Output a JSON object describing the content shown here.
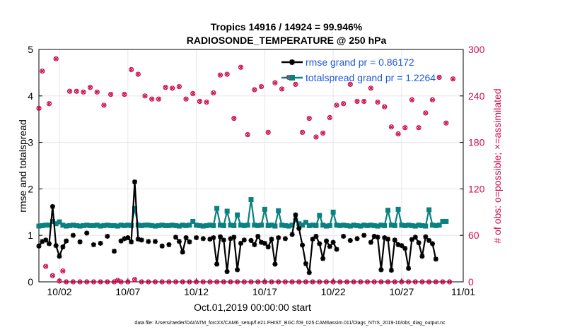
{
  "chart_data": {
    "type": "line",
    "title": "Tropics 14916 / 14924 = 99.946%",
    "subtitle": "RADIOSONDE_TEMPERATURE @ 250 hPa",
    "xlabel": "Oct.01,2019 00:00:00 start",
    "ylabel_left": "rmse and totalspread",
    "ylabel_right": "# of obs: o=possible; ×=assimilated",
    "footer": "data file: /Users/raeder/DAI/ATM_forcXX/CAM6_setup/f.e21.FHIST_BGC.f09_025.CAM6assim.011/Diags_NTrS_2019-10/obs_diag_output.nc",
    "xlim": [
      0.5,
      31.5
    ],
    "ylim_left": [
      0,
      5
    ],
    "ylim_right": [
      0,
      300
    ],
    "x_ticks": [
      {
        "value": 2,
        "label": "10/02"
      },
      {
        "value": 7,
        "label": "10/07"
      },
      {
        "value": 12,
        "label": "10/12"
      },
      {
        "value": 17,
        "label": "10/17"
      },
      {
        "value": 22,
        "label": "10/22"
      },
      {
        "value": 27,
        "label": "10/27"
      },
      {
        "value": 32,
        "label": "11/01"
      }
    ],
    "y_ticks_left": [
      "0",
      "1",
      "2",
      "3",
      "4",
      "5"
    ],
    "y_ticks_right": [
      "0",
      "60",
      "120",
      "180",
      "240",
      "300"
    ],
    "colors": {
      "rmse": "#000000",
      "spread": "#0a8080",
      "obs": "#cc0f4e",
      "legend_text": "#1f5ad6"
    },
    "series": [
      {
        "name": "rmse grand pr = 0.86172",
        "x0": 0.5,
        "dx": 0.25,
        "values": [
          0.77,
          0.87,
          0.9,
          0.82,
          1.62,
          0.78,
          0.55,
          0.75,
          0.88,
          null,
          1.0,
          null,
          0.86,
          null,
          1.05,
          null,
          0.8,
          null,
          0.83,
          null,
          0.98,
          null,
          0.66,
          null,
          0.88,
          0.93,
          0.95,
          0.86,
          2.15,
          0.92,
          0.9,
          null,
          0.87,
          null,
          0.87,
          null,
          0.77,
          null,
          0.8,
          null,
          0.96,
          0.87,
          0.64,
          0.95,
          0.86,
          null,
          0.95,
          null,
          0.93,
          null,
          0.92,
          0.95,
          0.38,
          0.97,
          0.9,
          0.22,
          0.93,
          0.96,
          0.26,
          0.83,
          0.9,
          null,
          0.89,
          0.8,
          0.98,
          0.85,
          0.83,
          0.75,
          0.92,
          0.38,
          0.95,
          null,
          0.93,
          null,
          1.02,
          1.44,
          1.15,
          0.79,
          0.39,
          0.2,
          0.92,
          0.98,
          0.82,
          0.5,
          0.88,
          0.76,
          0.85,
          0.7,
          null,
          0.98,
          null,
          0.89,
          null,
          0.93,
          null,
          1.0,
          null,
          0.85,
          0.98,
          0.96,
          0.26,
          0.95,
          0.92,
          0.25,
          0.9,
          0.8,
          0.78,
          0.72,
          0.29,
          0.91,
          0.96,
          0.84,
          0.55,
          0.97,
          0.89,
          0.82,
          0.49,
          null,
          null,
          null
        ]
      },
      {
        "name": "totalspread grand pr = 1.2264",
        "x0": 0.5,
        "dx": 0.25,
        "values": [
          1.2,
          1.21,
          1.22,
          1.22,
          1.3,
          1.25,
          1.29,
          1.22,
          1.2,
          1.21,
          1.22,
          1.21,
          1.2,
          1.21,
          1.22,
          1.21,
          1.21,
          1.22,
          1.2,
          1.21,
          1.22,
          1.21,
          1.21,
          1.2,
          1.22,
          1.21,
          1.22,
          1.21,
          1.58,
          1.22,
          1.21,
          1.22,
          1.22,
          1.21,
          1.2,
          1.21,
          1.22,
          1.21,
          1.21,
          1.22,
          1.21,
          1.2,
          1.22,
          1.21,
          1.22,
          1.3,
          1.22,
          1.21,
          1.2,
          1.21,
          1.22,
          1.21,
          1.58,
          1.22,
          1.21,
          1.52,
          1.22,
          1.21,
          1.44,
          1.22,
          1.21,
          1.22,
          1.77,
          1.22,
          1.21,
          1.22,
          1.56,
          1.21,
          1.22,
          1.2,
          1.53,
          1.22,
          1.21,
          1.2,
          1.22,
          1.33,
          1.25,
          1.22,
          1.28,
          1.21,
          1.22,
          1.21,
          1.43,
          1.22,
          1.2,
          1.21,
          1.5,
          1.22,
          1.21,
          1.22,
          1.21,
          1.2,
          1.22,
          1.21,
          1.2,
          1.22,
          1.21,
          1.22,
          1.21,
          1.2,
          1.22,
          1.21,
          1.54,
          1.22,
          1.21,
          1.56,
          1.22,
          1.21,
          1.22,
          1.21,
          1.2,
          1.22,
          1.21,
          1.2,
          1.55,
          1.22,
          1.21,
          1.22,
          1.3,
          1.3,
          null,
          null
        ]
      },
      {
        "name": "# of obs possible",
        "axis": "right",
        "x0": 0.5,
        "dx": 0.25,
        "values": [
          224,
          272,
          20,
          230,
          8,
          288,
          1,
          14,
          0,
          246,
          0,
          246,
          0,
          245,
          0,
          251,
          0,
          245,
          0,
          228,
          0,
          242,
          0,
          2,
          0,
          242,
          0,
          274,
          3,
          268,
          0,
          240,
          0,
          236,
          0,
          236,
          0,
          251,
          0,
          250,
          0,
          252,
          0,
          236,
          0,
          243,
          0,
          233,
          0,
          232,
          0,
          244,
          0,
          267,
          0,
          268,
          0,
          211,
          0,
          277,
          0,
          190,
          0,
          248,
          0,
          252,
          0,
          193,
          0,
          257,
          0,
          249,
          0,
          264,
          0,
          255,
          0,
          193,
          0,
          211,
          0,
          187,
          0,
          192,
          0,
          212,
          0,
          228,
          0,
          230,
          0,
          255,
          0,
          233,
          0,
          233,
          0,
          250,
          0,
          232,
          0,
          226,
          0,
          200,
          0,
          191,
          0,
          199,
          0,
          235,
          0,
          199,
          0,
          218,
          0,
          235,
          0,
          264,
          0,
          205,
          0,
          262
        ]
      },
      {
        "name": "# of obs assimilated",
        "axis": "right",
        "x0": 0.5,
        "dx": 0.25,
        "values": [
          224,
          272,
          20,
          230,
          8,
          288,
          1,
          14,
          0,
          246,
          0,
          246,
          0,
          245,
          0,
          251,
          0,
          245,
          0,
          228,
          0,
          242,
          0,
          2,
          0,
          242,
          0,
          274,
          3,
          268,
          0,
          240,
          0,
          236,
          0,
          236,
          0,
          251,
          0,
          250,
          0,
          252,
          0,
          236,
          0,
          243,
          0,
          233,
          0,
          232,
          0,
          244,
          0,
          267,
          0,
          268,
          0,
          211,
          0,
          277,
          0,
          190,
          0,
          248,
          0,
          252,
          0,
          193,
          0,
          257,
          0,
          249,
          0,
          264,
          0,
          255,
          0,
          193,
          0,
          211,
          0,
          187,
          0,
          192,
          0,
          212,
          0,
          228,
          0,
          230,
          0,
          255,
          0,
          233,
          0,
          233,
          0,
          250,
          0,
          232,
          0,
          226,
          0,
          200,
          0,
          191,
          0,
          199,
          0,
          235,
          0,
          199,
          0,
          218,
          0,
          235,
          0,
          264,
          0,
          205,
          0,
          262
        ]
      }
    ],
    "legend": [
      {
        "label": "rmse grand pr = 0.86172",
        "series": 0
      },
      {
        "label": "totalspread grand pr = 1.2264",
        "series": 1
      }
    ]
  }
}
